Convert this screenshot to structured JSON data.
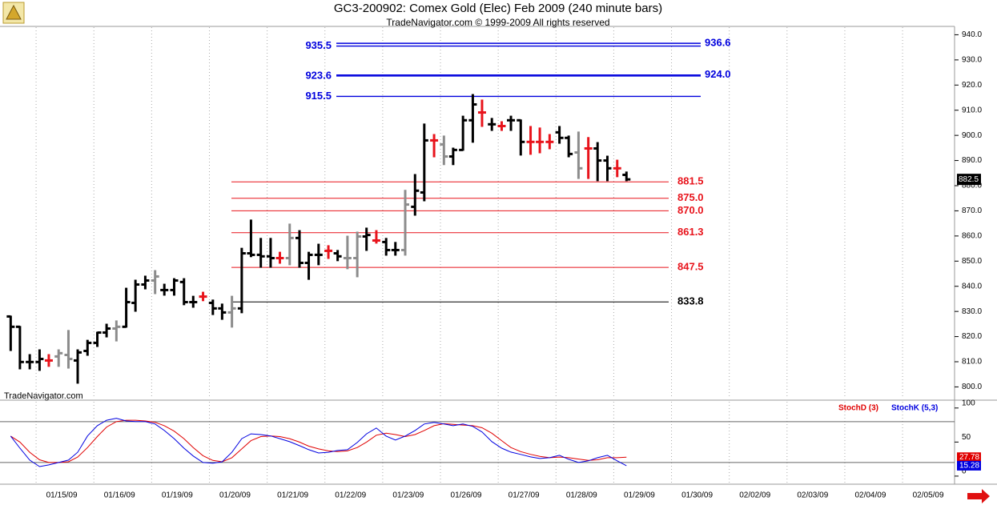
{
  "chart_data": [
    {
      "type": "ohlc",
      "title": "GC3-200902:  Comex Gold (Elec) Feb 2009  (240 minute bars)",
      "subtitle": "TradeNavigator.com © 1999-2009 All rights reserved",
      "watermark": "TradeNavigator.com",
      "x": [
        -0.44,
        -0.28,
        -0.11,
        0.06,
        0.22,
        0.39,
        0.56,
        0.72,
        0.89,
        1.06,
        1.22,
        1.39,
        1.56,
        1.72,
        1.89,
        2.06,
        2.22,
        2.39,
        2.56,
        2.72,
        2.89,
        3.06,
        3.22,
        3.39,
        3.56,
        3.72,
        3.89,
        4.06,
        4.22,
        4.39,
        4.56,
        4.72,
        4.89,
        5.06,
        5.22,
        5.39,
        5.56,
        5.72,
        5.89,
        6.06,
        6.22,
        6.39,
        6.56,
        6.72,
        6.89,
        7.06,
        7.22,
        7.39,
        7.56,
        7.72,
        7.89,
        8.06,
        8.22,
        8.39,
        8.56,
        8.72,
        8.89,
        9.06,
        9.22,
        9.39,
        9.56,
        9.72,
        9.89,
        10.06,
        10.22
      ],
      "open": [
        828.0,
        823.9,
        809.9,
        809.9,
        810.5,
        812.1,
        812.7,
        810.5,
        814.3,
        817.5,
        821.6,
        823.2,
        823.9,
        833.4,
        840.7,
        842.3,
        838.5,
        838.5,
        841.7,
        833.7,
        835.9,
        833.4,
        831.2,
        829.6,
        831.2,
        853.1,
        852.5,
        851.9,
        851.2,
        851.2,
        859.2,
        849.3,
        852.5,
        854.1,
        853.1,
        851.2,
        851.2,
        859.8,
        858.2,
        857.6,
        854.4,
        854.4,
        871.6,
        877.3,
        898.0,
        896.4,
        891.6,
        894.2,
        906.0,
        909.1,
        904.4,
        903.7,
        906.0,
        906.0,
        897.4,
        897.4,
        897.4,
        901.2,
        899.0,
        893.2,
        894.8,
        894.8,
        890.0,
        886.9,
        884.3
      ],
      "high": [
        828.0,
        823.9,
        812.7,
        814.6,
        812.7,
        814.6,
        822.3,
        814.6,
        818.4,
        821.6,
        824.8,
        826.1,
        839.1,
        842.3,
        843.9,
        846.1,
        840.7,
        842.9,
        842.9,
        835.9,
        837.5,
        834.4,
        832.8,
        835.9,
        855.0,
        866.2,
        858.9,
        858.9,
        853.4,
        864.6,
        862.0,
        853.4,
        856.6,
        856.0,
        854.1,
        859.8,
        861.4,
        863.0,
        862.0,
        858.9,
        857.3,
        878.0,
        884.3,
        904.4,
        900.2,
        899.6,
        894.8,
        907.5,
        916.1,
        913.9,
        906.6,
        905.3,
        907.5,
        906.0,
        903.4,
        902.8,
        900.2,
        903.4,
        899.6,
        901.2,
        899.0,
        897.0,
        891.6,
        890.0,
        885.3
      ],
      "low": [
        814.6,
        807.3,
        807.3,
        806.7,
        808.3,
        808.3,
        807.6,
        801.6,
        812.7,
        816.2,
        820.0,
        818.4,
        823.9,
        830.2,
        839.1,
        837.2,
        836.6,
        836.6,
        832.8,
        831.8,
        834.4,
        828.9,
        827.0,
        823.9,
        829.6,
        851.9,
        847.7,
        847.7,
        849.3,
        848.7,
        847.7,
        842.9,
        848.7,
        851.2,
        850.3,
        847.1,
        843.9,
        854.4,
        857.3,
        852.5,
        852.5,
        852.5,
        868.4,
        874.1,
        891.6,
        888.5,
        888.5,
        894.2,
        897.4,
        903.7,
        902.1,
        902.1,
        902.1,
        892.3,
        892.6,
        893.2,
        894.8,
        897.0,
        891.6,
        883.0,
        883.0,
        882.1,
        882.1,
        883.7,
        882.1
      ],
      "close": [
        823.9,
        809.9,
        809.9,
        811.1,
        810.5,
        813.4,
        811.1,
        813.7,
        817.5,
        821.6,
        823.2,
        823.9,
        833.7,
        840.7,
        842.3,
        843.9,
        838.5,
        842.3,
        833.7,
        833.7,
        835.9,
        831.2,
        829.6,
        831.2,
        853.1,
        852.5,
        851.9,
        851.2,
        851.2,
        859.2,
        849.3,
        852.5,
        852.5,
        854.1,
        851.9,
        851.2,
        859.8,
        860.4,
        858.2,
        854.4,
        854.4,
        872.5,
        878.0,
        898.0,
        898.0,
        891.6,
        894.2,
        906.0,
        912.3,
        909.1,
        904.4,
        903.7,
        906.0,
        897.4,
        897.4,
        897.4,
        897.4,
        899.0,
        892.6,
        886.9,
        894.8,
        890.0,
        886.9,
        886.9,
        882.5
      ],
      "colors": [
        "#000000",
        "#000000",
        "#000000",
        "#000000",
        "#e8141c",
        "#8c8c8c",
        "#8c8c8c",
        "#000000",
        "#000000",
        "#000000",
        "#000000",
        "#8c8c8c",
        "#000000",
        "#000000",
        "#000000",
        "#8c8c8c",
        "#000000",
        "#000000",
        "#000000",
        "#000000",
        "#e8141c",
        "#000000",
        "#000000",
        "#8c8c8c",
        "#000000",
        "#000000",
        "#000000",
        "#000000",
        "#e8141c",
        "#8c8c8c",
        "#000000",
        "#000000",
        "#000000",
        "#e8141c",
        "#000000",
        "#8c8c8c",
        "#8c8c8c",
        "#000000",
        "#e8141c",
        "#000000",
        "#000000",
        "#8c8c8c",
        "#000000",
        "#000000",
        "#e8141c",
        "#8c8c8c",
        "#000000",
        "#000000",
        "#000000",
        "#e8141c",
        "#000000",
        "#e8141c",
        "#000000",
        "#000000",
        "#e8141c",
        "#e8141c",
        "#e8141c",
        "#000000",
        "#000000",
        "#8c8c8c",
        "#e8141c",
        "#000000",
        "#000000",
        "#e8141c",
        "#000000"
      ],
      "xlim": [
        -0.625,
        15.9
      ],
      "xticks": [
        {
          "value": 0,
          "label": "01/15/09"
        },
        {
          "value": 1,
          "label": "01/16/09"
        },
        {
          "value": 2,
          "label": "01/19/09"
        },
        {
          "value": 3,
          "label": "01/20/09"
        },
        {
          "value": 4,
          "label": "01/21/09"
        },
        {
          "value": 5,
          "label": "01/22/09"
        },
        {
          "value": 6,
          "label": "01/23/09"
        },
        {
          "value": 7,
          "label": "01/26/09"
        },
        {
          "value": 8,
          "label": "01/27/09"
        },
        {
          "value": 9,
          "label": "01/28/09"
        },
        {
          "value": 10,
          "label": "01/29/09"
        },
        {
          "value": 11,
          "label": "01/30/09"
        },
        {
          "value": 12,
          "label": "02/02/09"
        },
        {
          "value": 13,
          "label": "02/03/09"
        },
        {
          "value": 14,
          "label": "02/04/09"
        },
        {
          "value": 15,
          "label": "02/05/09"
        }
      ],
      "ylim": [
        796,
        943
      ],
      "yticks": [
        {
          "value": 800,
          "label": "800.0"
        },
        {
          "value": 810,
          "label": "810.0"
        },
        {
          "value": 820,
          "label": "820.0"
        },
        {
          "value": 830,
          "label": "830.0"
        },
        {
          "value": 840,
          "label": "840.0"
        },
        {
          "value": 850,
          "label": "850.0"
        },
        {
          "value": 860,
          "label": "860.0"
        },
        {
          "value": 870,
          "label": "870.0"
        },
        {
          "value": 880,
          "label": "880.0"
        },
        {
          "value": 890,
          "label": "890.0"
        },
        {
          "value": 900,
          "label": "900.0"
        },
        {
          "value": 910,
          "label": "910.0"
        },
        {
          "value": 920,
          "label": "920.0"
        },
        {
          "value": 930,
          "label": "930.0"
        },
        {
          "value": 940,
          "label": "940.0"
        }
      ],
      "grid": true,
      "fib_levels": [
        {
          "value": 936.6,
          "side": "right",
          "color": "#0000dd"
        },
        {
          "value": 935.5,
          "side": "left",
          "color": "#0000dd"
        },
        {
          "value": 924,
          "label": "924.0",
          "side": "right",
          "color": "#0000dd"
        },
        {
          "value": 923.6,
          "side": "left",
          "color": "#0000dd"
        },
        {
          "value": 915.5,
          "side": "left",
          "color": "#0000dd"
        }
      ],
      "levels": [
        {
          "value": 881.5,
          "color": "#e8141c"
        },
        {
          "value": 875,
          "label": "875.0",
          "color": "#e8141c"
        },
        {
          "value": 870,
          "label": "870.0",
          "color": "#e8141c"
        },
        {
          "value": 861.3,
          "color": "#e8141c"
        },
        {
          "value": 847.5,
          "color": "#e8141c"
        },
        {
          "value": 833.8,
          "color": "#000000"
        }
      ]
    },
    {
      "type": "line",
      "series": [
        {
          "name": "StochD (3)",
          "color": "#e00000",
          "values": [
            58.8,
            50,
            35,
            24,
            20,
            20,
            21,
            28,
            42,
            58,
            72,
            80,
            82,
            82,
            81,
            79,
            74,
            66,
            55,
            42,
            30,
            23,
            21,
            27,
            40,
            52,
            58,
            59,
            58,
            55,
            50,
            44,
            40,
            37,
            36,
            37,
            42,
            50,
            60,
            63,
            61,
            58,
            61,
            67,
            74,
            77,
            76,
            75,
            74,
            71,
            63,
            52,
            42,
            36,
            32,
            29,
            27,
            28,
            27,
            25,
            23,
            24,
            27,
            27,
            27.78
          ]
        },
        {
          "name": "StochK (5,3)",
          "color": "#0000e0",
          "values": [
            58.8,
            41,
            23.5,
            14,
            16.5,
            20,
            23.5,
            35,
            59,
            74,
            82,
            85,
            81,
            80,
            80,
            76.5,
            67,
            55,
            41,
            29.5,
            20,
            19,
            21,
            35,
            55,
            62,
            61,
            59,
            55,
            50.5,
            44.7,
            38.8,
            34,
            35,
            37.6,
            38.8,
            49.4,
            62,
            70.6,
            58.8,
            53,
            58.8,
            67,
            76.5,
            78.8,
            76.5,
            74,
            76.5,
            73,
            64.7,
            50.6,
            41,
            35.3,
            31.8,
            28.2,
            25.9,
            27,
            30.6,
            24.7,
            20,
            22.4,
            27,
            30.6,
            22.4,
            15.28
          ]
        }
      ],
      "ylim": [
        -6,
        108
      ],
      "yticks": [
        0,
        50,
        100
      ],
      "reference_lines": [
        20,
        80
      ]
    }
  ]
}
